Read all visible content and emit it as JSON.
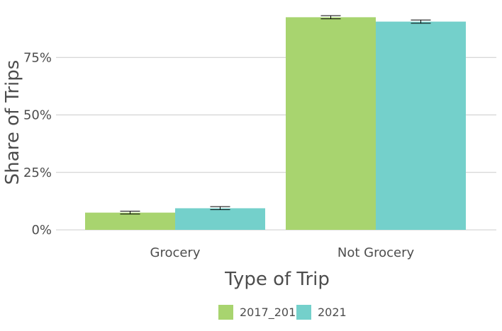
{
  "chart_data": {
    "type": "bar",
    "categories": [
      "Grocery",
      "Not Grocery"
    ],
    "series": [
      {
        "name": "2017_2019",
        "color": "#a8d46f",
        "values": [
          7.5,
          92.5
        ],
        "error_low": [
          6.9,
          91.8
        ],
        "error_high": [
          8.1,
          93.2
        ]
      },
      {
        "name": "2021",
        "color": "#74d0cb",
        "values": [
          9.4,
          90.6
        ],
        "error_low": [
          8.8,
          89.9
        ],
        "error_high": [
          10.1,
          91.3
        ]
      }
    ],
    "xlabel": "Type of Trip",
    "ylabel": "Share of Trips",
    "ylim": [
      0,
      100
    ],
    "yticks": [
      0,
      25,
      50,
      75
    ],
    "ytick_labels": [
      "0%",
      "25%",
      "50%",
      "75%"
    ],
    "grid": true,
    "legend_position": "bottom",
    "colors": {
      "grid": "#cccccc",
      "text": "#4d4d4d",
      "error_bar": "#000000"
    }
  }
}
